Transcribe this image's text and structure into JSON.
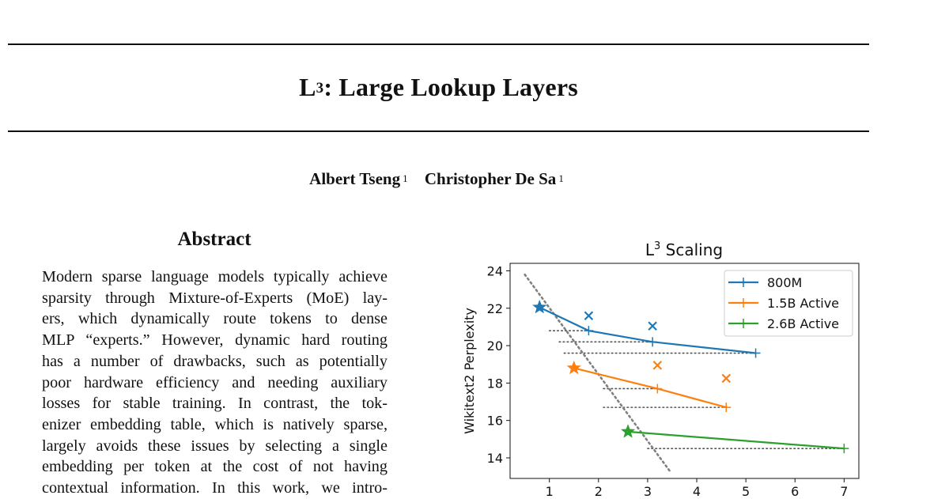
{
  "paper": {
    "title_main": "L",
    "title_sup": "3",
    "title_rest": ": Large Lookup Layers",
    "authors": [
      {
        "name": "Albert Tseng",
        "affil": "1"
      },
      {
        "name": "Christopher De Sa",
        "affil": "1"
      }
    ],
    "abstract_heading": "Abstract",
    "abstract_lines": [
      "Modern sparse language models typically achieve",
      "sparsity through Mixture-of-Experts (MoE) lay-",
      "ers, which dynamically route tokens to dense",
      "MLP “experts.” However, dynamic hard routing",
      "has a number of drawbacks, such as potentially",
      "poor hardware efficiency and needing auxiliary",
      "losses for stable training.  In contrast, the tok-",
      "enizer embedding table, which is natively sparse,",
      "largely avoids these issues by selecting a single",
      "embedding per token at the cost of not having",
      "contextual information.  In this work, we intro-"
    ]
  },
  "chart_data": {
    "type": "line",
    "title_main": "L",
    "title_sup": "3",
    "title_rest": " Scaling",
    "xlabel": "",
    "ylabel": "Wikitext2 Perplexity",
    "xlim": [
      0.2,
      7.3
    ],
    "ylim": [
      12.9,
      24.4
    ],
    "xticks": [
      1,
      2,
      3,
      4,
      5,
      6,
      7
    ],
    "yticks": [
      14,
      16,
      18,
      20,
      22,
      24
    ],
    "grid": false,
    "legend_position": "top-right",
    "series": [
      {
        "name": "800M",
        "color": "#1f77b4",
        "x": [
          0.8,
          1.8,
          3.1,
          5.2
        ],
        "y": [
          22.05,
          20.8,
          20.2,
          19.6
        ],
        "star": [
          0.8,
          22.05
        ],
        "crosses": [
          [
            1.8,
            21.6
          ],
          [
            3.1,
            21.05
          ]
        ]
      },
      {
        "name": "1.5B Active",
        "color": "#ff7f0e",
        "x": [
          1.5,
          3.2,
          4.6
        ],
        "y": [
          18.8,
          17.7,
          16.7
        ],
        "star": [
          1.5,
          18.8
        ],
        "crosses": [
          [
            3.2,
            18.95
          ],
          [
            4.6,
            18.25
          ]
        ]
      },
      {
        "name": "2.6B Active",
        "color": "#2ca02c",
        "x": [
          2.6,
          7.0
        ],
        "y": [
          15.4,
          14.5
        ],
        "star": [
          2.6,
          15.4
        ],
        "crosses": []
      }
    ],
    "frontier": {
      "color": "#808080",
      "x": [
        0.5,
        3.45
      ],
      "y": [
        23.8,
        13.3
      ]
    },
    "dotted_refs": [
      {
        "y": 20.8,
        "x_start": 1.0,
        "x_end": 1.8
      },
      {
        "y": 20.2,
        "x_start": 1.2,
        "x_end": 3.1
      },
      {
        "y": 19.6,
        "x_start": 1.3,
        "x_end": 5.2
      },
      {
        "y": 17.7,
        "x_start": 2.1,
        "x_end": 3.2
      },
      {
        "y": 16.7,
        "x_start": 2.1,
        "x_end": 4.6
      },
      {
        "y": 14.5,
        "x_start": 3.0,
        "x_end": 7.0
      }
    ]
  }
}
